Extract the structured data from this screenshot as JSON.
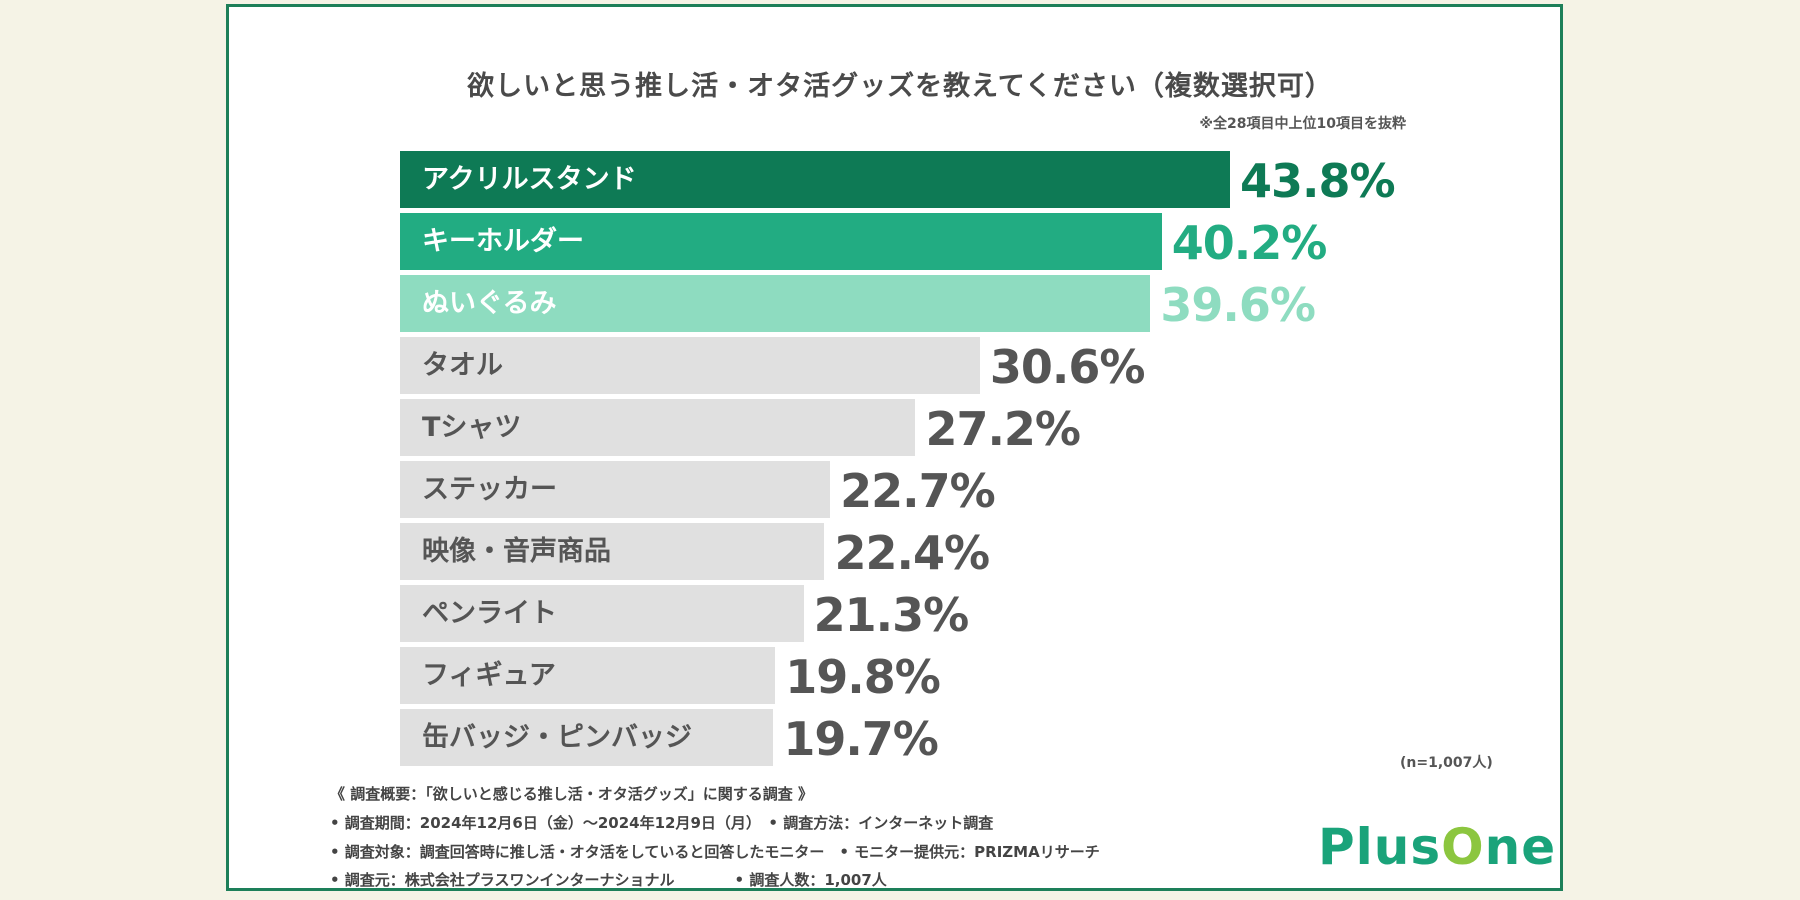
{
  "colors": {
    "background": "#f5f3e6",
    "frame": "#1d7f59",
    "top1": "#0e7a55",
    "top2": "#22ac82",
    "top3": "#8edcc0",
    "other": "#e0e0e0",
    "other_text": "#555555"
  },
  "chart_data": {
    "type": "bar",
    "orientation": "horizontal",
    "title": "欲しいと思う推し活・オタ活グッズを教えてください（複数選択可）",
    "note": "※全28項目中上位10項目を抜粋",
    "categories": [
      "アクリルスタンド",
      "キーホルダー",
      "ぬいぐるみ",
      "タオル",
      "Tシャツ",
      "ステッカー",
      "映像・音声商品",
      "ペンライト",
      "フィギュア",
      "缶バッジ・ピンバッジ"
    ],
    "values": [
      43.8,
      40.2,
      39.6,
      30.6,
      27.2,
      22.7,
      22.4,
      21.3,
      19.8,
      19.7
    ],
    "data_labels": [
      "43.8%",
      "40.2%",
      "39.6%",
      "30.6%",
      "27.2%",
      "22.7%",
      "22.4%",
      "21.3%",
      "19.8%",
      "19.7%"
    ],
    "unit": "%",
    "grid": false,
    "sample": "(n=1,007人)"
  },
  "footer": {
    "lines": [
      "《 調査概要：「欲しいと感じる推し活・オタ活グッズ」に関する調査 》",
      "• 調査期間：2024年12月6日（金）～2024年12月9日（月）　• 調査方法：インターネット調査",
      "• 調査対象：調査回答時に推し活・オタ活をしていると回答したモニター　• モニター提供元：PRIZMAリサーチ",
      "• 調査元：株式会社プラスワンインターナショナル　　　　• 調査人数：1,007人"
    ]
  },
  "logo": {
    "text": "PlusOne",
    "colors": [
      "#8cc63f",
      "#1aa37a"
    ]
  }
}
